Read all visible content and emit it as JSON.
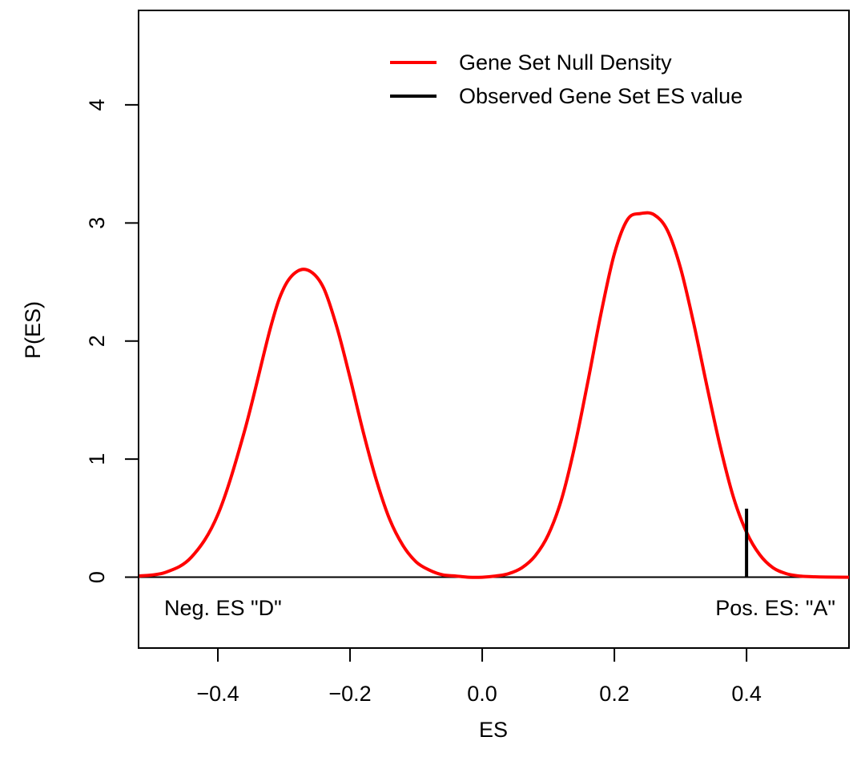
{
  "chart_data": {
    "type": "line",
    "xlabel": "ES",
    "ylabel": "P(ES)",
    "xlim": [
      -0.52,
      0.555
    ],
    "ylim": [
      -0.6,
      4.8
    ],
    "x_ticks": [
      -0.4,
      -0.2,
      0.0,
      0.2,
      0.4
    ],
    "x_tick_labels": [
      "−0.4",
      "−0.2",
      "0.0",
      "0.2",
      "0.4"
    ],
    "y_ticks": [
      0,
      1,
      2,
      3,
      4
    ],
    "y_tick_labels": [
      "0",
      "1",
      "2",
      "3",
      "4"
    ],
    "grid": false,
    "legend_position": "top-right",
    "series": [
      {
        "name": "Gene Set Null Density",
        "color": "#ff0000",
        "x": [
          -0.52,
          -0.48,
          -0.44,
          -0.4,
          -0.36,
          -0.32,
          -0.3,
          -0.28,
          -0.26,
          -0.24,
          -0.22,
          -0.2,
          -0.18,
          -0.16,
          -0.14,
          -0.12,
          -0.1,
          -0.08,
          -0.06,
          -0.04,
          -0.02,
          0.0,
          0.02,
          0.04,
          0.06,
          0.08,
          0.1,
          0.12,
          0.14,
          0.16,
          0.18,
          0.2,
          0.22,
          0.24,
          0.26,
          0.28,
          0.3,
          0.32,
          0.34,
          0.36,
          0.38,
          0.4,
          0.42,
          0.44,
          0.46,
          0.48,
          0.5,
          0.52,
          0.555
        ],
        "values": [
          0.01,
          0.04,
          0.17,
          0.53,
          1.23,
          2.12,
          2.45,
          2.59,
          2.59,
          2.45,
          2.12,
          1.69,
          1.23,
          0.82,
          0.49,
          0.27,
          0.13,
          0.06,
          0.02,
          0.01,
          0.0,
          0.0,
          0.01,
          0.03,
          0.08,
          0.18,
          0.36,
          0.66,
          1.11,
          1.66,
          2.24,
          2.74,
          3.03,
          3.08,
          3.07,
          2.94,
          2.62,
          2.15,
          1.62,
          1.11,
          0.68,
          0.38,
          0.19,
          0.08,
          0.03,
          0.01,
          0.004,
          0.001,
          0.0
        ]
      },
      {
        "name": "Observed Gene Set ES value",
        "color": "#000000",
        "x": [
          0.4,
          0.4
        ],
        "values": [
          0,
          0.58
        ]
      }
    ],
    "baseline": 0,
    "annotations": [
      "Neg. ES \"D\"",
      "Pos. ES: \"A\""
    ]
  }
}
